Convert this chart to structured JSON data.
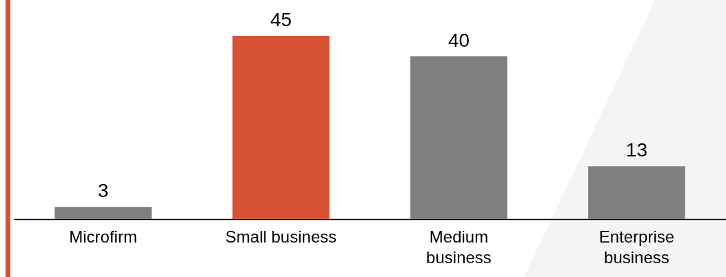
{
  "chart_data": {
    "type": "bar",
    "categories": [
      "Microfirm",
      "Small business",
      "Medium business",
      "Enterprise business"
    ],
    "values": [
      3,
      45,
      40,
      13
    ],
    "colors": [
      "#7f7f7f",
      "#d85236",
      "#7f7f7f",
      "#7f7f7f"
    ],
    "data_labels": true,
    "grid": false
  }
}
